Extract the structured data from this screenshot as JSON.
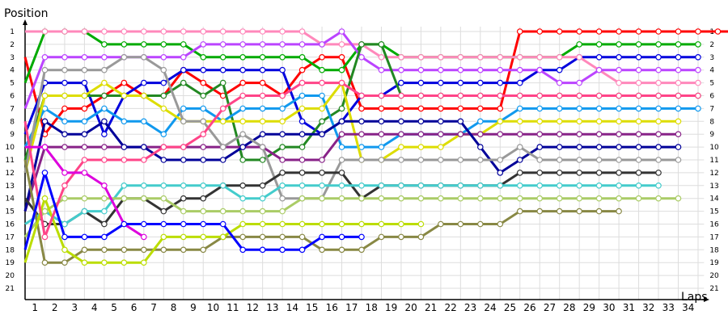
{
  "chart_data": {
    "type": "line",
    "title": "",
    "ylabel": "Position",
    "xlabel": "Laps",
    "x_ticks": [
      1,
      2,
      3,
      4,
      5,
      6,
      7,
      8,
      9,
      10,
      11,
      12,
      13,
      14,
      15,
      16,
      17,
      18,
      19,
      20,
      21,
      22,
      23,
      24,
      25,
      26,
      27,
      28,
      29,
      30,
      31,
      32,
      33,
      34
    ],
    "y_ticks": [
      1,
      2,
      3,
      4,
      5,
      6,
      7,
      8,
      9,
      10,
      11,
      12,
      13,
      14,
      15,
      16,
      17,
      18,
      19,
      20,
      21
    ],
    "ylim": [
      21,
      1
    ],
    "xlim": [
      0,
      35
    ],
    "grid": true,
    "legend": "none",
    "series": [
      {
        "color": "#ff0000",
        "start": [
          0,
          3
        ],
        "values": [
          9,
          7,
          7,
          6,
          5,
          6,
          6,
          4,
          5,
          6,
          5,
          5,
          6,
          4,
          3,
          3,
          7,
          7,
          7,
          7,
          7,
          7,
          7,
          7,
          1,
          1,
          1,
          1,
          1,
          1,
          1,
          1,
          1,
          1,
          1,
          1,
          1,
          1,
          1,
          1
        ]
      },
      {
        "color": "#00aa00",
        "start": [
          0,
          5
        ],
        "values": [
          1,
          1,
          1,
          2,
          2,
          2,
          2,
          2,
          3,
          3,
          3,
          3,
          3,
          3,
          4,
          4,
          2,
          2,
          3,
          3,
          3,
          3,
          3,
          3,
          3,
          3,
          3,
          2,
          2,
          2,
          2,
          2,
          2,
          2
        ]
      },
      {
        "color": "#0000dd",
        "start": [
          0,
          9
        ],
        "values": [
          5,
          5,
          5,
          9,
          6,
          5,
          5,
          4,
          4,
          4,
          4,
          4,
          4,
          8,
          9,
          8,
          6,
          6,
          5,
          5,
          5,
          5,
          5,
          5,
          5,
          4,
          4,
          3,
          3,
          3,
          3,
          3,
          3,
          3
        ]
      },
      {
        "color": "#ff88bb",
        "start": [
          0,
          1
        ],
        "values": [
          1,
          1,
          1,
          1,
          1,
          1,
          1,
          1,
          1,
          1,
          1,
          1,
          1,
          1,
          2,
          2,
          2,
          3,
          3,
          3,
          3,
          3,
          3,
          3,
          3,
          3,
          3,
          3,
          4,
          5,
          5,
          5,
          5,
          5
        ]
      },
      {
        "color": "#bb44ff",
        "start": [
          0,
          7
        ],
        "values": [
          3,
          3,
          3,
          3,
          3,
          3,
          3,
          3,
          2,
          2,
          2,
          2,
          2,
          2,
          2,
          1,
          3,
          4,
          4,
          4,
          4,
          4,
          4,
          4,
          4,
          4,
          5,
          5,
          4,
          4,
          4,
          4,
          4,
          4
        ]
      },
      {
        "color": "#228822",
        "start": [
          0,
          11
        ],
        "values": [
          6,
          6,
          6,
          6,
          6,
          6,
          6,
          5,
          6,
          5,
          11,
          11,
          10,
          10,
          8,
          7,
          2,
          2,
          6,
          6,
          6,
          6,
          6,
          6,
          6,
          6,
          6,
          6,
          6,
          6,
          6,
          6,
          6,
          6
        ]
      },
      {
        "color": "#1199ee",
        "start": [
          0,
          10
        ],
        "values": [
          7,
          8,
          8,
          7,
          8,
          8,
          9,
          7,
          7,
          8,
          7,
          7,
          7,
          6,
          6,
          10,
          10,
          10,
          9,
          9,
          9,
          9,
          8,
          8,
          7,
          7,
          7,
          7,
          7,
          7,
          7,
          7,
          7,
          7
        ]
      },
      {
        "color": "#dddd00",
        "start": [
          0,
          12
        ],
        "values": [
          6,
          6,
          6,
          5,
          6,
          6,
          7,
          8,
          8,
          8,
          8,
          8,
          8,
          7,
          7,
          5,
          11,
          11,
          10,
          10,
          10,
          9,
          9,
          8,
          8,
          8,
          8,
          8,
          8,
          8,
          8,
          8,
          8
        ]
      },
      {
        "color": "#882288",
        "start": [
          0,
          15
        ],
        "values": [
          10,
          10,
          10,
          10,
          10,
          10,
          10,
          10,
          10,
          10,
          10,
          10,
          11,
          11,
          11,
          9,
          9,
          9,
          9,
          9,
          9,
          9,
          9,
          9,
          9,
          9,
          9,
          9,
          9,
          9,
          9,
          9,
          9
        ]
      },
      {
        "color": "#000099",
        "start": [
          0,
          15
        ],
        "values": [
          8,
          9,
          9,
          8,
          10,
          10,
          11,
          11,
          11,
          11,
          10,
          9,
          9,
          9,
          9,
          8,
          8,
          8,
          8,
          8,
          8,
          8,
          10,
          12,
          11,
          10,
          10,
          10,
          10,
          10,
          10,
          10,
          10
        ]
      },
      {
        "color": "#999999",
        "start": [
          0,
          12
        ],
        "values": [
          4,
          4,
          4,
          4,
          3,
          3,
          4,
          8,
          8,
          10,
          9,
          10,
          14,
          14,
          14,
          11,
          11,
          11,
          11,
          11,
          11,
          11,
          11,
          11,
          10,
          11,
          11,
          11,
          11,
          11,
          11,
          11,
          11
        ]
      },
      {
        "color": "#333333",
        "start": [
          0,
          14
        ],
        "values": [
          16,
          16,
          15,
          16,
          14,
          14,
          15,
          14,
          14,
          13,
          13,
          13,
          12,
          12,
          12,
          12,
          14,
          13,
          13,
          13,
          13,
          13,
          13,
          13,
          12,
          12,
          12,
          12,
          12,
          12,
          12,
          12
        ]
      },
      {
        "color": "#44cccc",
        "start": [
          0,
          16
        ],
        "values": [
          15,
          16,
          15,
          15,
          13,
          13,
          13,
          13,
          13,
          13,
          14,
          14,
          13,
          13,
          13,
          13,
          13,
          13,
          13,
          13,
          13,
          13,
          13,
          13,
          13,
          13,
          13,
          13,
          13,
          13,
          13,
          13
        ]
      },
      {
        "color": "#aacc66",
        "start": [
          0,
          17
        ],
        "values": [
          15,
          14,
          14,
          14,
          14,
          14,
          14,
          15,
          15,
          15,
          15,
          15,
          15,
          14,
          14,
          14,
          14,
          14,
          14,
          14,
          14,
          14,
          14,
          14,
          14,
          14,
          14,
          14,
          14,
          14,
          14,
          14,
          14
        ]
      },
      {
        "color": "#888844",
        "start": [
          0,
          11
        ],
        "values": [
          19,
          19,
          18,
          18,
          18,
          18,
          18,
          18,
          18,
          17,
          17,
          17,
          17,
          17,
          18,
          18,
          18,
          17,
          17,
          17,
          16,
          16,
          16,
          16,
          15,
          15,
          15,
          15,
          15,
          15
        ]
      },
      {
        "color": "#bbdd00",
        "start": [
          0,
          19
        ],
        "values": [
          14,
          18,
          19,
          19,
          19,
          19,
          17,
          17,
          17,
          17,
          16,
          16,
          16,
          16,
          16,
          16,
          16,
          16,
          16,
          16
        ]
      },
      {
        "color": "#ff4488",
        "start": [
          0,
          8
        ],
        "values": [
          17,
          13,
          11,
          11,
          11,
          11,
          10,
          10,
          9,
          7,
          6,
          6,
          6,
          5,
          5,
          5,
          6,
          6,
          6,
          6,
          6,
          6,
          6,
          6,
          6,
          6,
          6,
          6,
          6,
          6,
          6,
          6,
          6,
          6
        ]
      },
      {
        "color": "#dd00dd",
        "start": [
          0,
          10
        ],
        "values": [
          10,
          12,
          12,
          13,
          16,
          17
        ]
      },
      {
        "color": "#0000ff",
        "start": [
          0,
          18
        ],
        "values": [
          12,
          17,
          17,
          17,
          16,
          16,
          16,
          16,
          16,
          16,
          18,
          18,
          18,
          18,
          17,
          17,
          17
        ]
      }
    ]
  }
}
